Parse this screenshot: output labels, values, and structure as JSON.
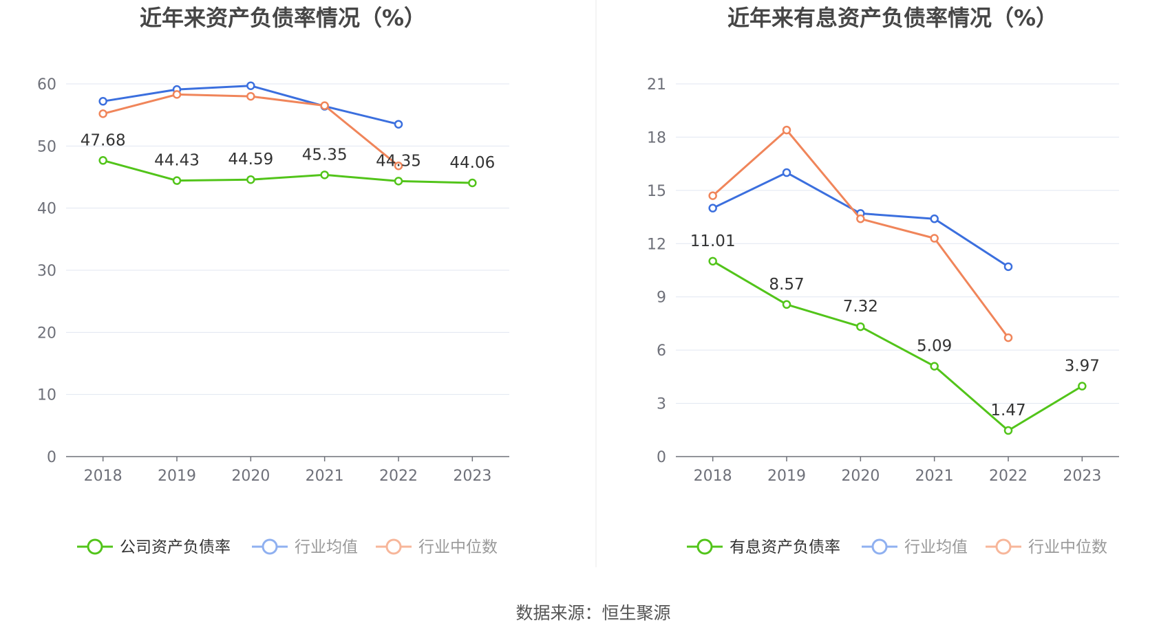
{
  "source": "数据来源：恒生聚源",
  "chart_data": [
    {
      "type": "line",
      "title": "近年来资产负债率情况（%）",
      "categories": [
        "2018",
        "2019",
        "2020",
        "2021",
        "2022",
        "2023"
      ],
      "ylim": [
        0,
        60
      ],
      "yticks": [
        "0",
        "10",
        "20",
        "30",
        "40",
        "50",
        "60"
      ],
      "grid": true,
      "legend_position": "bottom",
      "series": [
        {
          "name": "公司资产负债率",
          "color": "#52c41a",
          "values": [
            47.68,
            44.43,
            44.59,
            45.35,
            44.35,
            44.06
          ],
          "labels": [
            "47.68",
            "44.43",
            "44.59",
            "45.35",
            "44.35",
            "44.06"
          ]
        },
        {
          "name": "行业均值",
          "color": "#3b6fde",
          "values": [
            57.2,
            59.1,
            59.7,
            56.4,
            53.5,
            null
          ]
        },
        {
          "name": "行业中位数",
          "color": "#f0855a",
          "values": [
            55.2,
            58.3,
            58.0,
            56.5,
            46.8,
            null
          ]
        }
      ]
    },
    {
      "type": "line",
      "title": "近年来有息资产负债率情况（%）",
      "categories": [
        "2018",
        "2019",
        "2020",
        "2021",
        "2022",
        "2023"
      ],
      "ylim": [
        0,
        21
      ],
      "yticks": [
        "0",
        "3",
        "6",
        "9",
        "12",
        "15",
        "18",
        "21"
      ],
      "grid": true,
      "legend_position": "bottom",
      "series": [
        {
          "name": "有息资产负债率",
          "color": "#52c41a",
          "values": [
            11.01,
            8.57,
            7.32,
            5.09,
            1.47,
            3.97
          ],
          "labels": [
            "11.01",
            "8.57",
            "7.32",
            "5.09",
            "1.47",
            "3.97"
          ]
        },
        {
          "name": "行业均值",
          "color": "#3b6fde",
          "values": [
            14.0,
            16.0,
            13.7,
            13.4,
            10.7,
            null
          ]
        },
        {
          "name": "行业中位数",
          "color": "#f0855a",
          "values": [
            14.7,
            18.4,
            13.4,
            12.3,
            6.7,
            null
          ]
        }
      ]
    }
  ]
}
